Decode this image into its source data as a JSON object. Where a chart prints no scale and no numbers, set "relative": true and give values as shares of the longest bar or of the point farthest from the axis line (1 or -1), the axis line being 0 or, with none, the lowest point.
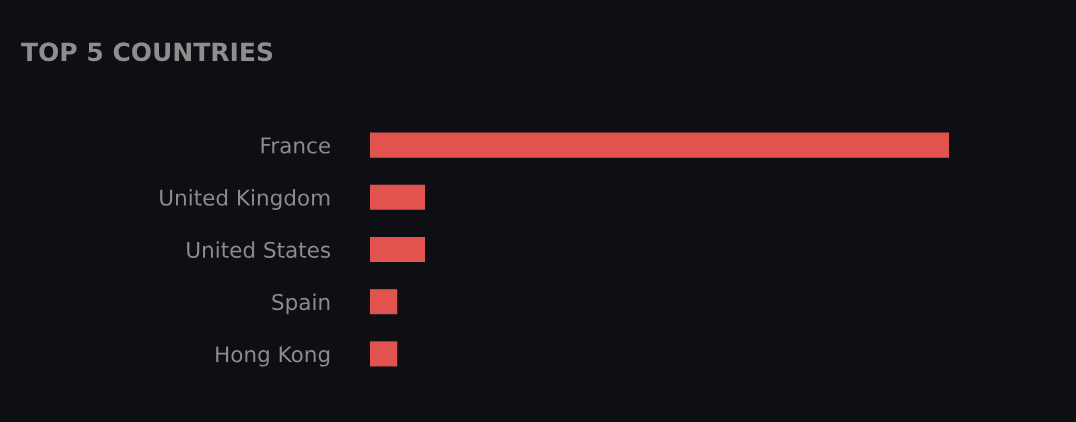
{
  "chart_data": {
    "type": "bar",
    "title": "TOP 5 COUNTRIES",
    "orientation": "horizontal",
    "relative": true,
    "categories": [
      "France",
      "United Kingdom",
      "United States",
      "Spain",
      "Hong Kong"
    ],
    "values": [
      1,
      0.095,
      0.095,
      0.047,
      0.047
    ],
    "color": "#e0534f",
    "grid": false,
    "legend": false
  }
}
